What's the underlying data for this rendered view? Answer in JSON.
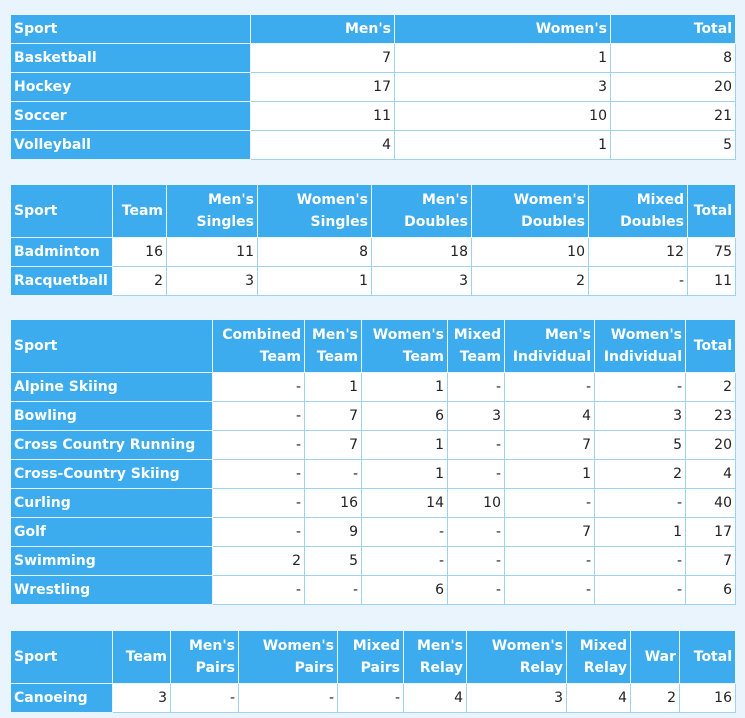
{
  "tables": [
    {
      "header": [
        "Sport",
        "Men's",
        "Women's",
        "Total"
      ],
      "rows": [
        [
          "Basketball",
          "7",
          "1",
          "8"
        ],
        [
          "Hockey",
          "17",
          "3",
          "20"
        ],
        [
          "Soccer",
          "11",
          "10",
          "21"
        ],
        [
          "Volleyball",
          "4",
          "1",
          "5"
        ]
      ]
    },
    {
      "header": [
        "Sport",
        "Team",
        "Men's Singles",
        "Women's Singles",
        "Men's Doubles",
        "Women's Doubles",
        "Mixed Doubles",
        "Total"
      ],
      "rows": [
        [
          "Badminton",
          "16",
          "11",
          "8",
          "18",
          "10",
          "12",
          "75"
        ],
        [
          "Racquetball",
          "2",
          "3",
          "1",
          "3",
          "2",
          "-",
          "11"
        ]
      ]
    },
    {
      "header": [
        "Sport",
        "Combined Team",
        "Men's Team",
        "Women's Team",
        "Mixed Team",
        "Men's Individual",
        "Women's Individual",
        "Total"
      ],
      "rows": [
        [
          "Alpine Skiing",
          "-",
          "1",
          "1",
          "-",
          "-",
          "-",
          "2"
        ],
        [
          "Bowling",
          "-",
          "7",
          "6",
          "3",
          "4",
          "3",
          "23"
        ],
        [
          "Cross Country Running",
          "-",
          "7",
          "1",
          "-",
          "7",
          "5",
          "20"
        ],
        [
          "Cross-Country Skiing",
          "-",
          "-",
          "1",
          "-",
          "1",
          "2",
          "4"
        ],
        [
          "Curling",
          "-",
          "16",
          "14",
          "10",
          "-",
          "-",
          "40"
        ],
        [
          "Golf",
          "-",
          "9",
          "-",
          "-",
          "7",
          "1",
          "17"
        ],
        [
          "Swimming",
          "2",
          "5",
          "-",
          "-",
          "-",
          "-",
          "7"
        ],
        [
          "Wrestling",
          "-",
          "-",
          "6",
          "-",
          "-",
          "-",
          "6"
        ]
      ]
    },
    {
      "header": [
        "Sport",
        "Team",
        "Men's Pairs",
        "Women's Pairs",
        "Mixed Pairs",
        "Men's Relay",
        "Women's Relay",
        "Mixed Relay",
        "War",
        "Total"
      ],
      "rows": [
        [
          "Canoeing",
          "3",
          "-",
          "-",
          "-",
          "4",
          "3",
          "4",
          "2",
          "16"
        ]
      ]
    }
  ]
}
